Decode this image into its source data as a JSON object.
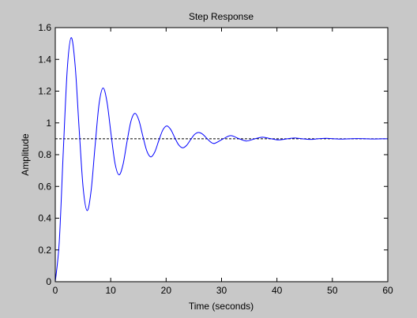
{
  "chart_data": {
    "type": "line",
    "title": "Step Response",
    "x_label": "Time (seconds)",
    "y_label": "Amplitude",
    "color": "#0000ff",
    "x": [
      0,
      0.72,
      1.44,
      2.16,
      2.87,
      3.59,
      4.31,
      5.03,
      5.75,
      6.47,
      7.19,
      7.9,
      8.62,
      9.34,
      10.06,
      10.78,
      11.5,
      12.22,
      12.93,
      13.65,
      14.37,
      15.09,
      15.81,
      16.53,
      17.25,
      17.97,
      18.68,
      19.4,
      20.12,
      20.84,
      21.56,
      22.28,
      23,
      23.71,
      24.43,
      25.15,
      25.87,
      26.59,
      27.31,
      28.03,
      28.74,
      30.18,
      31.62,
      33.06,
      34.49,
      35.93,
      37.37,
      38.8,
      40.24,
      41.68,
      43.12,
      44.55,
      45.99,
      47.43,
      48.87,
      50.3,
      51.74,
      53.18,
      54.61,
      56.05,
      57.49,
      58.93,
      60
    ],
    "values": [
      0,
      0.252,
      0.817,
      1.337,
      1.537,
      1.359,
      0.959,
      0.59,
      0.448,
      0.575,
      0.858,
      1.119,
      1.22,
      1.13,
      0.93,
      0.745,
      0.673,
      0.737,
      0.879,
      1.01,
      1.06,
      1.016,
      0.915,
      0.822,
      0.786,
      0.818,
      0.889,
      0.955,
      0.981,
      0.958,
      0.907,
      0.861,
      0.843,
      0.859,
      0.895,
      0.928,
      0.94,
      0.929,
      0.904,
      0.88,
      0.871,
      0.897,
      0.92,
      0.902,
      0.886,
      0.899,
      0.91,
      0.901,
      0.893,
      0.899,
      0.905,
      0.9,
      0.896,
      0.9,
      0.903,
      0.9,
      0.898,
      0.9,
      0.901,
      0.9,
      0.899,
      0.9,
      0.9
    ],
    "steady_state": {
      "value": 0.9,
      "color": "#000000",
      "style": "dashed"
    },
    "xlim": [
      0,
      60
    ],
    "xticks": [
      0,
      10,
      20,
      30,
      40,
      50,
      60
    ],
    "ylim": [
      0,
      1.6
    ],
    "yticks": [
      0,
      0.2,
      0.4,
      0.6,
      0.8,
      1,
      1.2,
      1.4,
      1.6
    ]
  }
}
